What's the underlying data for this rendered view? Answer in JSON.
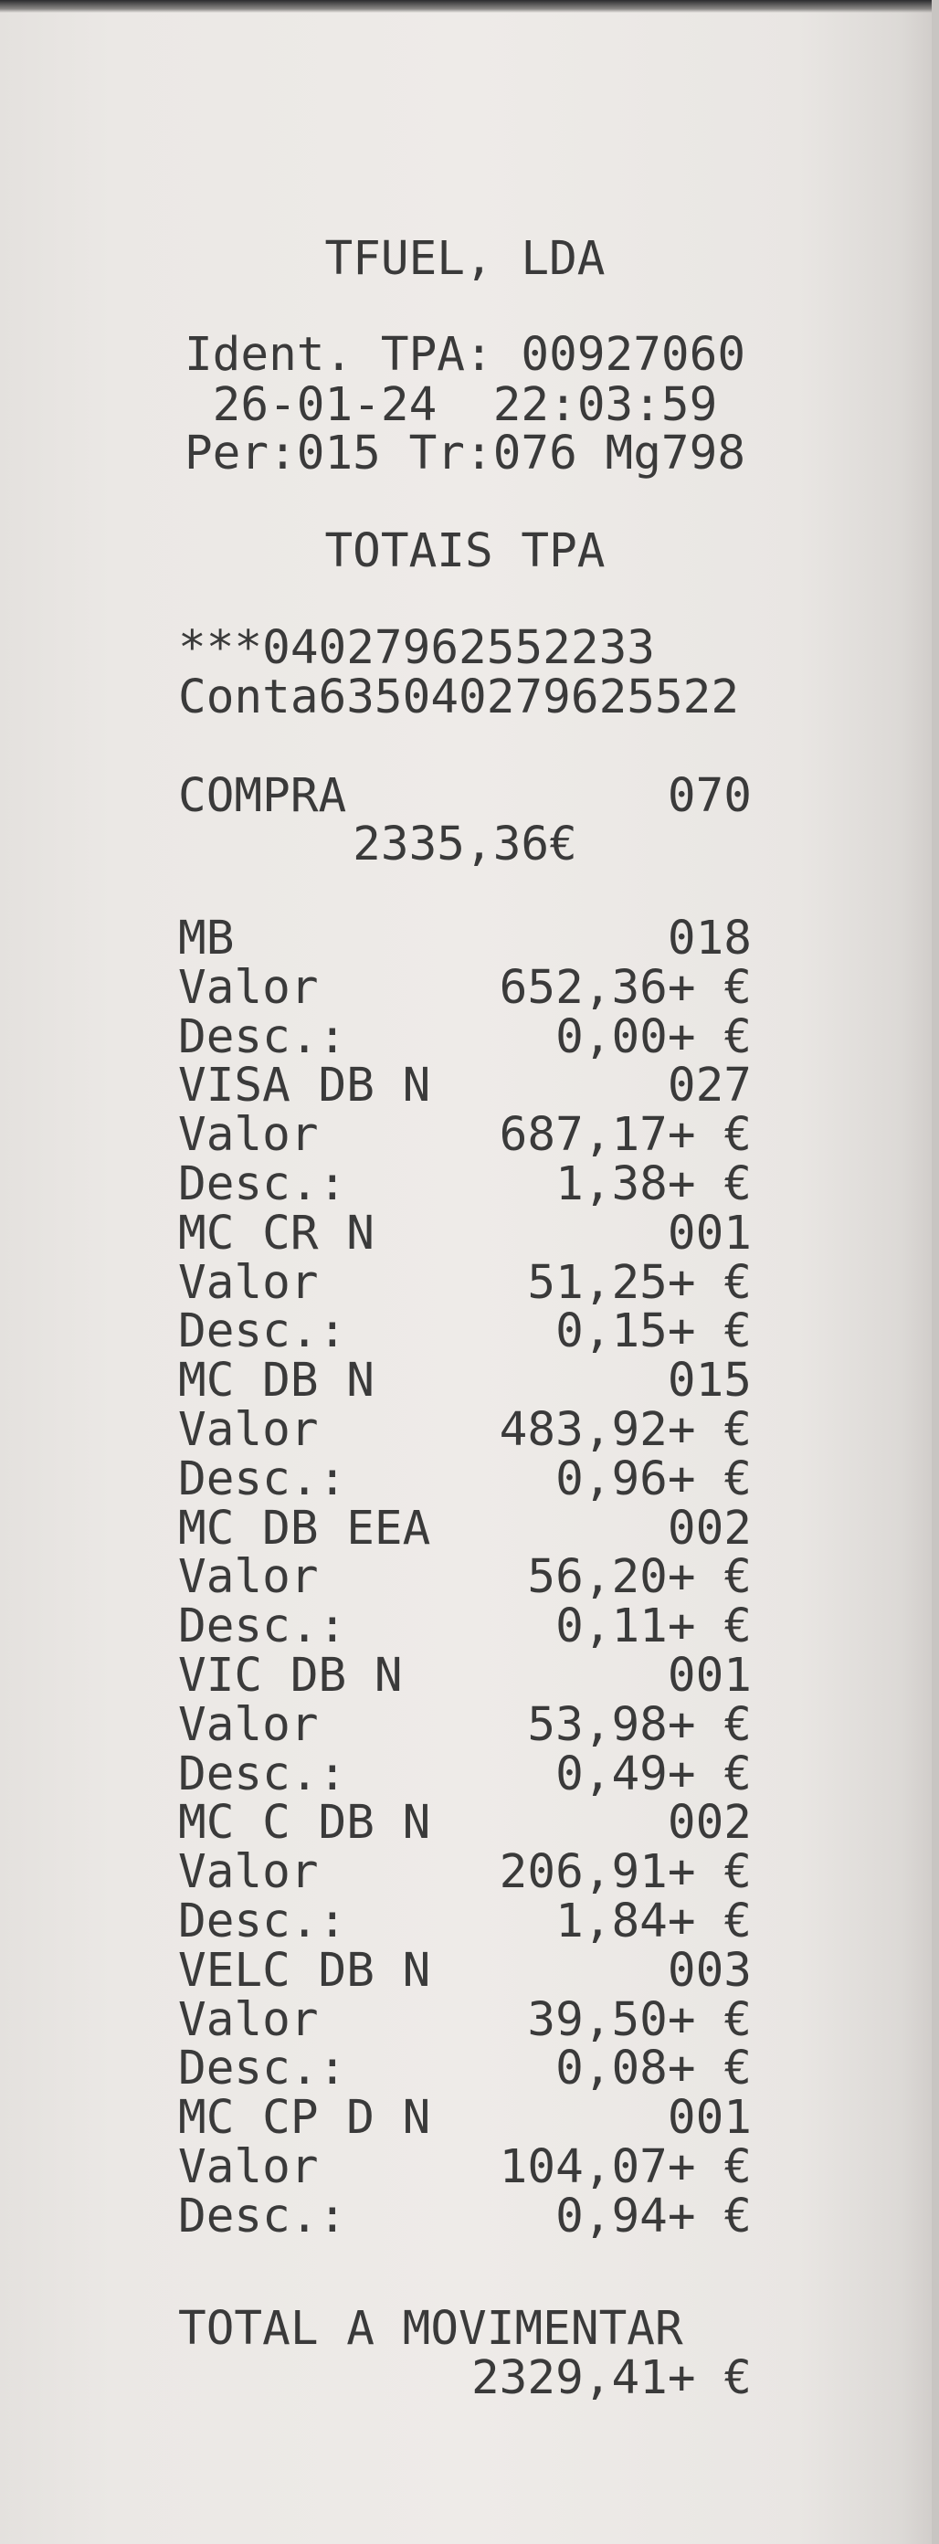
{
  "header": {
    "merchant": "TFUEL, LDA",
    "ident": "Ident. TPA: 00927060",
    "datetime": "26-01-24  22:03:59",
    "period": "Per:015 Tr:076 Mg798",
    "title": "TOTAIS TPA",
    "card": "***04027962552233",
    "account": "Conta635040279625522"
  },
  "compra": {
    "label": "COMPRA",
    "count": "070",
    "amount": "2335,36€"
  },
  "entries": [
    {
      "card": "MB",
      "count": "018",
      "valor_label": "Valor",
      "valor": "652,36+ €",
      "desc_label": "Desc.:",
      "desc": "0,00+ €"
    },
    {
      "card": "VISA DB N",
      "count": "027",
      "valor_label": "Valor",
      "valor": "687,17+ €",
      "desc_label": "Desc.:",
      "desc": "1,38+ €"
    },
    {
      "card": "MC CR N",
      "count": "001",
      "valor_label": "Valor",
      "valor": "51,25+ €",
      "desc_label": "Desc.:",
      "desc": "0,15+ €"
    },
    {
      "card": "MC DB N",
      "count": "015",
      "valor_label": "Valor",
      "valor": "483,92+ €",
      "desc_label": "Desc.:",
      "desc": "0,96+ €"
    },
    {
      "card": "MC DB EEA",
      "count": "002",
      "valor_label": "Valor",
      "valor": "56,20+ €",
      "desc_label": "Desc.:",
      "desc": "0,11+ €"
    },
    {
      "card": "VIC DB N",
      "count": "001",
      "valor_label": "Valor",
      "valor": "53,98+ €",
      "desc_label": "Desc.:",
      "desc": "0,49+ €"
    },
    {
      "card": "MC C DB N",
      "count": "002",
      "valor_label": "Valor",
      "valor": "206,91+ €",
      "desc_label": "Desc.:",
      "desc": "1,84+ €"
    },
    {
      "card": "VELC DB N",
      "count": "003",
      "valor_label": "Valor",
      "valor": "39,50+ €",
      "desc_label": "Desc.:",
      "desc": "0,08+ €"
    },
    {
      "card": "MC CP D N",
      "count": "001",
      "valor_label": "Valor",
      "valor": "104,07+ €",
      "desc_label": "Desc.:",
      "desc": "0,94+ €"
    }
  ],
  "total": {
    "label": "TOTAL A MOVIMENTAR",
    "amount": "2329,41+ €"
  }
}
